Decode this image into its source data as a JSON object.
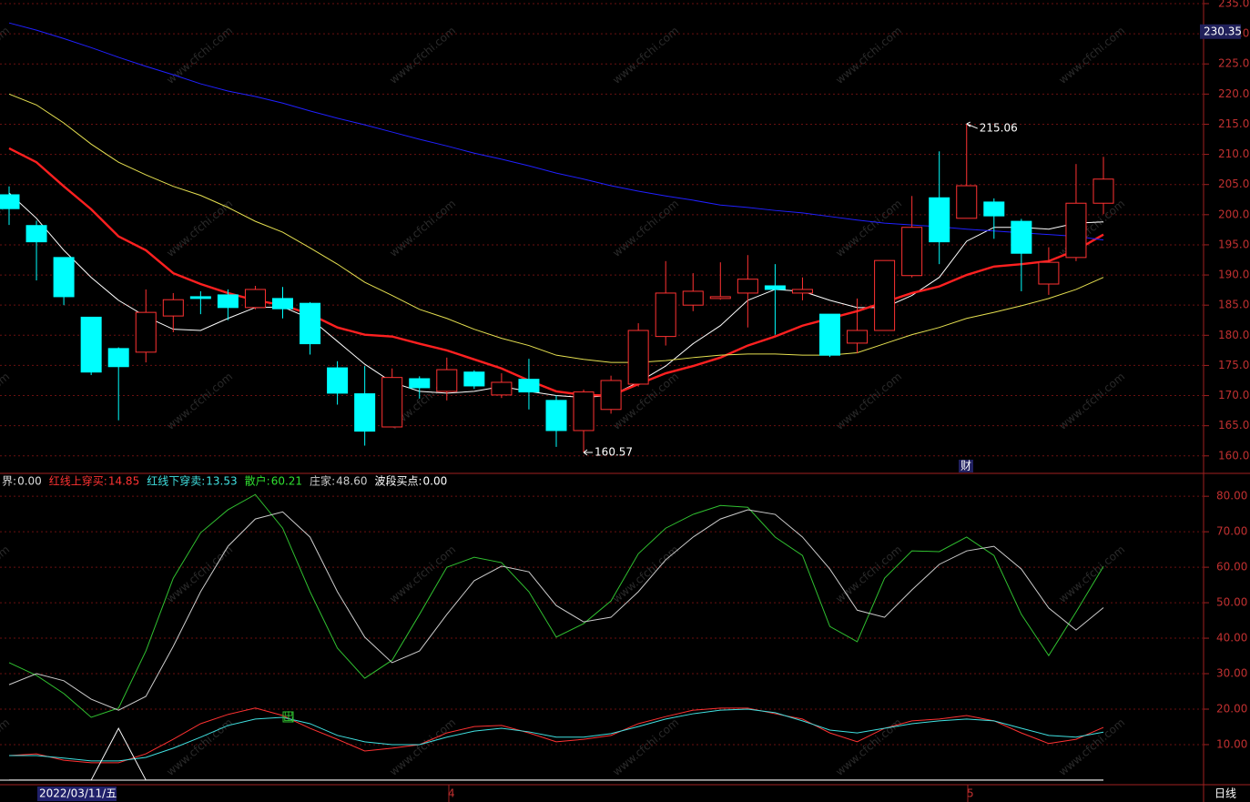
{
  "chart_data": [
    {
      "type": "candlestick",
      "open": [
        203.3,
        198.2,
        192.9,
        183.0,
        177.8,
        177.2,
        183.2,
        186.4,
        186.7,
        184.6,
        186.1,
        185.3,
        174.6,
        170.3,
        164.8,
        172.8,
        170.7,
        173.9,
        170.1,
        172.7,
        169.2,
        164.2,
        167.7,
        171.9,
        179.8,
        185.0,
        186.1,
        187.0,
        188.2,
        187.0,
        183.5,
        178.7,
        180.8,
        189.9,
        202.8,
        199.4,
        202.1,
        198.9,
        188.5,
        192.9,
        201.9
      ],
      "high": [
        204.7,
        199.0,
        192.9,
        183.0,
        178.0,
        187.6,
        187.0,
        187.3,
        187.6,
        188.2,
        188.0,
        185.5,
        175.7,
        174.9,
        174.5,
        173.2,
        176.3,
        174.2,
        173.7,
        176.1,
        170.0,
        171.0,
        173.3,
        182.0,
        192.3,
        190.3,
        192.1,
        193.3,
        191.8,
        189.6,
        183.5,
        186.1,
        192.4,
        203.1,
        210.5,
        215.06,
        202.7,
        199.3,
        194.6,
        208.4,
        209.6
      ],
      "low": [
        198.3,
        189.1,
        185.0,
        173.4,
        165.9,
        175.5,
        180.5,
        183.5,
        182.5,
        184.3,
        182.8,
        176.8,
        168.5,
        161.7,
        164.8,
        169.5,
        169.2,
        171.1,
        169.6,
        167.7,
        161.5,
        160.57,
        167.0,
        171.5,
        178.3,
        184.0,
        185.9,
        181.3,
        180.1,
        185.8,
        176.4,
        177.0,
        180.8,
        189.6,
        191.8,
        199.4,
        196.0,
        187.3,
        186.7,
        192.3,
        200.1
      ],
      "close": [
        201.0,
        195.5,
        186.4,
        173.9,
        174.8,
        183.8,
        185.9,
        186.1,
        184.6,
        187.6,
        184.4,
        178.6,
        170.4,
        164.1,
        173.0,
        171.3,
        174.3,
        171.6,
        172.2,
        170.6,
        164.2,
        170.6,
        172.5,
        180.8,
        187.0,
        187.3,
        186.4,
        189.3,
        187.6,
        187.6,
        176.7,
        180.8,
        192.4,
        197.9,
        195.5,
        204.8,
        199.8,
        193.6,
        192.1,
        201.9,
        205.9
      ],
      "up_color": "#ff3232",
      "down_color": "#00ffff",
      "series": [
        {
          "color": "#ffffff",
          "values": [
            203.6,
            199.4,
            194.1,
            189.6,
            185.8,
            183.1,
            181.0,
            180.8,
            182.8,
            184.6,
            184.7,
            182.8,
            179.0,
            175.2,
            172.2,
            170.7,
            170.4,
            170.7,
            171.5,
            170.7,
            170.0,
            169.7,
            170.0,
            172.2,
            174.9,
            178.6,
            181.6,
            185.8,
            187.6,
            187.3,
            185.8,
            184.6,
            184.6,
            186.6,
            189.6,
            195.6,
            197.9,
            197.9,
            197.6,
            198.6,
            198.8
          ]
        },
        {
          "color": "#ff2020",
          "width": 2.4,
          "values": [
            211.0,
            208.7,
            204.7,
            200.9,
            196.4,
            194.1,
            190.3,
            188.5,
            187.0,
            185.8,
            185.0,
            183.5,
            181.3,
            180.1,
            179.8,
            178.6,
            177.5,
            176.0,
            174.5,
            172.5,
            170.7,
            170.1,
            170.0,
            171.9,
            173.7,
            174.9,
            176.3,
            178.3,
            179.8,
            181.6,
            182.8,
            184.0,
            185.5,
            187.0,
            188.1,
            190.0,
            191.4,
            191.8,
            192.3,
            194.1,
            196.7
          ]
        },
        {
          "color": "#e6e050",
          "values": [
            220.0,
            218.2,
            215.2,
            211.7,
            208.7,
            206.6,
            204.7,
            203.2,
            201.2,
            198.9,
            197.1,
            194.5,
            191.8,
            188.8,
            186.6,
            184.3,
            182.8,
            181.0,
            179.5,
            178.3,
            176.7,
            176.0,
            175.5,
            175.5,
            175.8,
            176.3,
            176.7,
            176.9,
            176.9,
            176.7,
            176.7,
            177.1,
            178.6,
            180.1,
            181.3,
            182.8,
            183.8,
            184.9,
            186.1,
            187.6,
            189.6
          ]
        },
        {
          "color": "#2020ff",
          "values": [
            231.8,
            230.6,
            229.2,
            227.7,
            226.1,
            224.6,
            223.2,
            221.7,
            220.5,
            219.6,
            218.5,
            217.2,
            216.0,
            214.9,
            213.7,
            212.5,
            211.4,
            210.2,
            209.2,
            208.1,
            206.9,
            205.9,
            204.8,
            203.9,
            203.1,
            202.4,
            201.6,
            201.2,
            200.7,
            200.3,
            199.7,
            199.1,
            198.6,
            198.3,
            198.0,
            197.6,
            197.3,
            197.0,
            196.7,
            196.4,
            195.8
          ]
        }
      ],
      "ylim": [
        157.1,
        235.6
      ],
      "yticks": [
        {
          "value": 160,
          "label": "160.0"
        },
        {
          "value": 165,
          "label": "165.0"
        },
        {
          "value": 170,
          "label": "170.0"
        },
        {
          "value": 175,
          "label": "175.0"
        },
        {
          "value": 180,
          "label": "180.0"
        },
        {
          "value": 185,
          "label": "185.0"
        },
        {
          "value": 190,
          "label": "190.0"
        },
        {
          "value": 195,
          "label": "195.0"
        },
        {
          "value": 200,
          "label": "200.0"
        },
        {
          "value": 205,
          "label": "205.0"
        },
        {
          "value": 210,
          "label": "210.0"
        },
        {
          "value": 215,
          "label": "215.0"
        },
        {
          "value": 220,
          "label": "220.0"
        },
        {
          "value": 225,
          "label": "225.0"
        },
        {
          "value": 230,
          "label": "230.0"
        },
        {
          "value": 235,
          "label": "235.0"
        }
      ],
      "grid": true,
      "current_price": 230.35,
      "high_marker": {
        "index": 35,
        "value": 215.06
      },
      "low_marker": {
        "index": 21,
        "value": 160.57
      },
      "note": "财"
    },
    {
      "type": "line",
      "legend": [
        {
          "name": "界",
          "value_label": "0.00",
          "color": "#dddddd"
        },
        {
          "name": "红线上穿买",
          "value_label": "14.85",
          "color": "#ff3232"
        },
        {
          "name": "红线下穿卖",
          "value_label": "13.53",
          "color": "#40e0e0"
        },
        {
          "name": "散户",
          "value_label": "60.21",
          "color": "#30e030"
        },
        {
          "name": "庄家",
          "value_label": "48.60",
          "color": "#cccccc"
        },
        {
          "name": "波段买点",
          "value_label": "0.00",
          "color": "#ffffff"
        }
      ],
      "series": [
        {
          "color": "#30c030",
          "values": [
            33.1,
            29.5,
            24.4,
            17.7,
            20.3,
            36.4,
            56.9,
            69.7,
            76.2,
            80.5,
            71.0,
            53.1,
            37.2,
            28.7,
            33.8,
            46.7,
            60.0,
            62.8,
            61.3,
            53.1,
            40.3,
            44.1,
            50.5,
            63.8,
            71.0,
            74.9,
            77.4,
            76.9,
            68.5,
            63.3,
            43.3,
            39.0,
            56.9,
            64.6,
            64.4,
            68.5,
            63.3,
            46.7,
            35.1,
            47.4,
            60.21
          ]
        },
        {
          "color": "#cccccc",
          "values": [
            26.9,
            30.0,
            28.0,
            22.8,
            19.7,
            23.6,
            37.7,
            53.1,
            65.9,
            73.6,
            75.6,
            68.5,
            53.1,
            40.3,
            33.1,
            36.4,
            46.7,
            56.2,
            60.3,
            58.7,
            49.2,
            44.6,
            45.9,
            53.1,
            62.1,
            68.5,
            73.6,
            76.2,
            74.9,
            68.5,
            59.5,
            47.9,
            45.9,
            53.6,
            60.8,
            64.6,
            65.9,
            59.5,
            48.5,
            42.3,
            48.6
          ]
        },
        {
          "color": "#ff3232",
          "values": [
            6.9,
            7.4,
            5.6,
            4.9,
            4.9,
            7.4,
            11.5,
            15.9,
            18.5,
            20.3,
            18.2,
            14.6,
            11.5,
            8.2,
            9.0,
            10.0,
            13.3,
            15.1,
            15.4,
            13.3,
            10.8,
            11.5,
            12.6,
            15.9,
            17.9,
            19.7,
            20.3,
            20.3,
            18.7,
            17.2,
            13.3,
            10.8,
            14.6,
            16.7,
            17.2,
            18.2,
            16.7,
            13.3,
            10.3,
            11.5,
            14.85
          ]
        },
        {
          "color": "#40e0e0",
          "values": [
            6.9,
            6.9,
            6.2,
            5.4,
            5.4,
            6.4,
            9.0,
            12.1,
            15.4,
            17.2,
            17.7,
            15.9,
            12.6,
            10.8,
            10.0,
            10.0,
            12.1,
            13.8,
            14.6,
            13.6,
            12.1,
            12.1,
            13.1,
            15.1,
            17.2,
            18.7,
            19.7,
            20.0,
            19.0,
            16.7,
            14.1,
            13.3,
            14.6,
            15.9,
            16.7,
            17.2,
            16.7,
            14.6,
            12.6,
            12.1,
            13.53
          ]
        },
        {
          "color": "#ffffff",
          "values": [
            0,
            0,
            0,
            0,
            14.6,
            0,
            0,
            0,
            0,
            0,
            0,
            0,
            0,
            0,
            0,
            0,
            0,
            0,
            0,
            0,
            0,
            0,
            0,
            0,
            0,
            0,
            0,
            0,
            0,
            0,
            0,
            0,
            0,
            0,
            0,
            0,
            0,
            0,
            0,
            0,
            0
          ]
        }
      ],
      "ylim": [
        -1.3,
        86.2
      ],
      "yticks": [
        {
          "value": 10,
          "label": "10.00"
        },
        {
          "value": 20,
          "label": "20.00"
        },
        {
          "value": 30,
          "label": "30.00"
        },
        {
          "value": 40,
          "label": "40.00"
        },
        {
          "value": 50,
          "label": "50.00"
        },
        {
          "value": 60,
          "label": "60.00"
        },
        {
          "value": 70,
          "label": "70.00"
        },
        {
          "value": 80,
          "label": "80.00"
        }
      ],
      "grid": true,
      "signal": "出"
    }
  ],
  "x_axis": {
    "date_label": "2022/03/11/五",
    "month_labels": [
      "4",
      "5"
    ],
    "period_label": "日线"
  },
  "watermark": "www.cfchi.com"
}
